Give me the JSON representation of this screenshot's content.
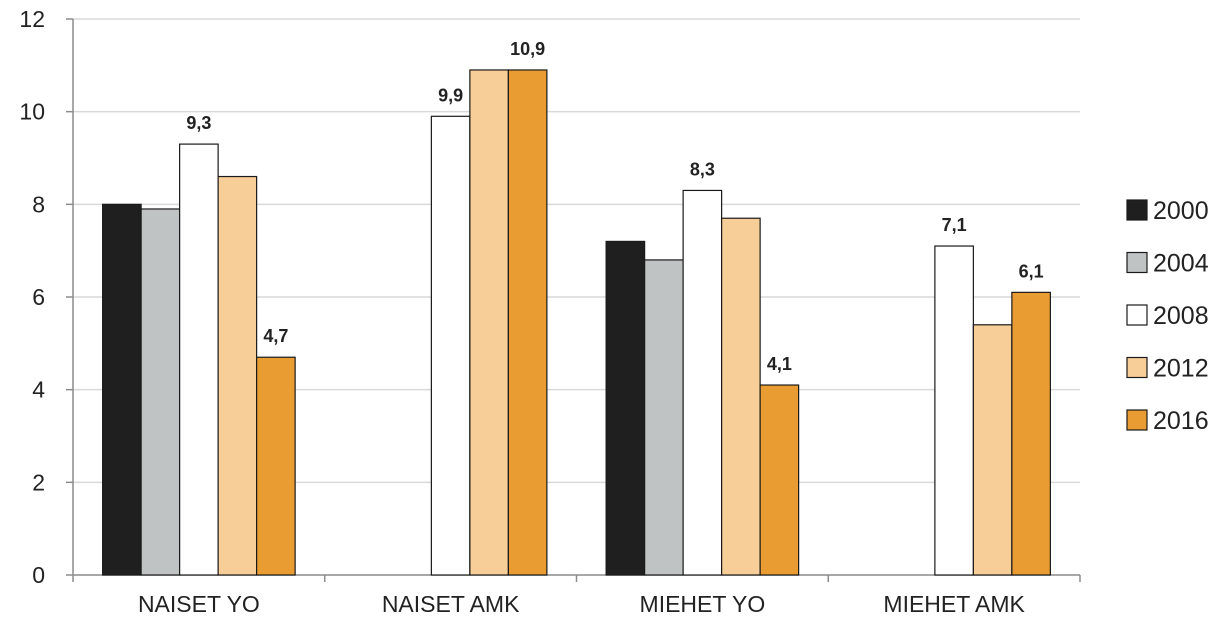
{
  "chart_data": {
    "type": "bar",
    "categories": [
      "NAISET YO",
      "NAISET AMK",
      "MIEHET YO",
      "MIEHET AMK"
    ],
    "series": [
      {
        "name": "2000",
        "color": "#1f1f1f",
        "values": [
          8.0,
          null,
          7.2,
          null
        ]
      },
      {
        "name": "2004",
        "color": "#bfc3c3",
        "values": [
          7.9,
          null,
          6.8,
          null
        ]
      },
      {
        "name": "2008",
        "color": "#ffffff",
        "values": [
          9.3,
          9.9,
          8.3,
          7.1
        ]
      },
      {
        "name": "2012",
        "color": "#f7cd98",
        "values": [
          8.6,
          10.9,
          7.7,
          5.4
        ]
      },
      {
        "name": "2016",
        "color": "#e99c32",
        "values": [
          4.7,
          10.9,
          4.1,
          6.1
        ]
      }
    ],
    "data_labels": [
      {
        "category": 0,
        "series": 2,
        "text": "9,3"
      },
      {
        "category": 0,
        "series": 4,
        "text": "4,7"
      },
      {
        "category": 1,
        "series": 2,
        "text": "9,9"
      },
      {
        "category": 1,
        "series": 4,
        "text": "10,9"
      },
      {
        "category": 2,
        "series": 2,
        "text": "8,3"
      },
      {
        "category": 2,
        "series": 4,
        "text": "4,1"
      },
      {
        "category": 3,
        "series": 2,
        "text": "7,1"
      },
      {
        "category": 3,
        "series": 4,
        "text": "6,1"
      }
    ],
    "title": "",
    "xlabel": "",
    "ylabel": "",
    "ylim": [
      0,
      12
    ],
    "yticks": [
      0,
      2,
      4,
      6,
      8,
      10,
      12
    ],
    "grid": true,
    "legend_position": "right"
  }
}
